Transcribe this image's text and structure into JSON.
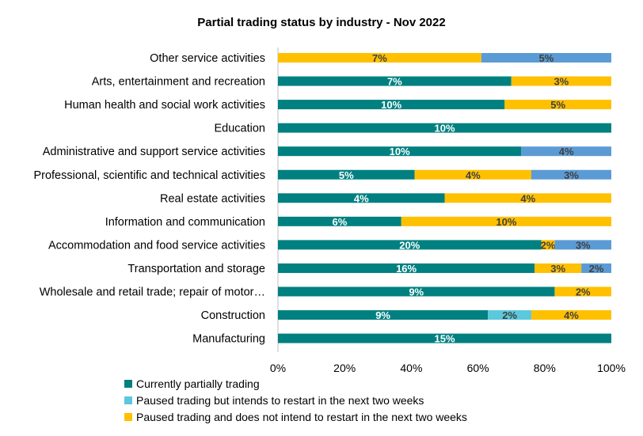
{
  "chart_data": {
    "type": "bar",
    "orientation": "horizontal",
    "stacked": "percent",
    "title": "Partial trading status by industry - Nov 2022",
    "xlim": [
      0,
      100
    ],
    "x_ticks": [
      "0%",
      "20%",
      "40%",
      "60%",
      "80%",
      "100%"
    ],
    "grid": false,
    "legend_position": "bottom",
    "categories": [
      "Other service activities",
      "Arts, entertainment and recreation",
      "Human health and social work activities",
      "Education",
      "Administrative and support service activities",
      "Professional, scientific and technical activities",
      "Real estate activities",
      "Information and communication",
      "Accommodation and food service activities",
      "Transportation and storage",
      "Wholesale and retail trade; repair of motor…",
      "Construction",
      "Manufacturing"
    ],
    "series": [
      {
        "name": "Currently partially trading",
        "color": "#008080",
        "values": [
          0,
          7,
          10,
          10,
          10,
          5,
          4,
          6,
          20,
          16,
          9,
          9,
          15
        ],
        "labels": [
          "",
          "7%",
          "10%",
          "10%",
          "10%",
          "5%",
          "4%",
          "6%",
          "20%",
          "16%",
          "9%",
          "9%",
          "15%"
        ]
      },
      {
        "name": "Paused trading but intends to restart in the next two weeks",
        "color": "#5BC8DC",
        "values": [
          0,
          0,
          0,
          0,
          0,
          0,
          0,
          0,
          0,
          0,
          0,
          2,
          0
        ],
        "labels": [
          "",
          "",
          "",
          "",
          "",
          "",
          "",
          "",
          "",
          "",
          "",
          "2%",
          ""
        ]
      },
      {
        "name": "Paused trading and does not intend to restart in the next two weeks",
        "color": "#FFC000",
        "values": [
          7,
          3,
          5,
          0,
          0,
          4,
          4,
          10,
          2,
          3,
          2,
          4,
          0
        ],
        "labels": [
          "7%",
          "3%",
          "5%",
          "",
          "",
          "4%",
          "4%",
          "10%",
          "2%",
          "3%",
          "2%",
          "4%",
          ""
        ]
      },
      {
        "name": "",
        "color": "#5B9BD5",
        "values": [
          5,
          0,
          0,
          0,
          4,
          3,
          0,
          0,
          3,
          2,
          0,
          0,
          0
        ],
        "labels": [
          "5%",
          "",
          "",
          "",
          "4%",
          "3%",
          "",
          "",
          "3%",
          "2%",
          "",
          "",
          ""
        ]
      }
    ],
    "segment_shares_percent": [
      [
        0,
        0,
        61,
        39
      ],
      [
        70,
        0,
        30,
        0
      ],
      [
        68,
        0,
        32,
        0
      ],
      [
        100,
        0,
        0,
        0
      ],
      [
        73,
        0,
        0,
        27
      ],
      [
        41,
        0,
        35,
        24
      ],
      [
        50,
        0,
        50,
        0
      ],
      [
        37,
        0,
        63,
        0
      ],
      [
        79,
        0,
        4,
        17
      ],
      [
        77,
        0,
        14,
        9
      ],
      [
        83,
        0,
        17,
        0
      ],
      [
        63,
        13,
        24,
        0
      ],
      [
        100,
        0,
        0,
        0
      ]
    ],
    "legend": [
      "Currently partially trading",
      "Paused trading but intends to restart in the next two weeks",
      "Paused trading and does not intend to restart in the next two weeks"
    ],
    "label_colors": {
      "#008080": "#ffffff",
      "#5BC8DC": "#404040",
      "#FFC000": "#404040",
      "#5B9BD5": "#404040"
    }
  }
}
